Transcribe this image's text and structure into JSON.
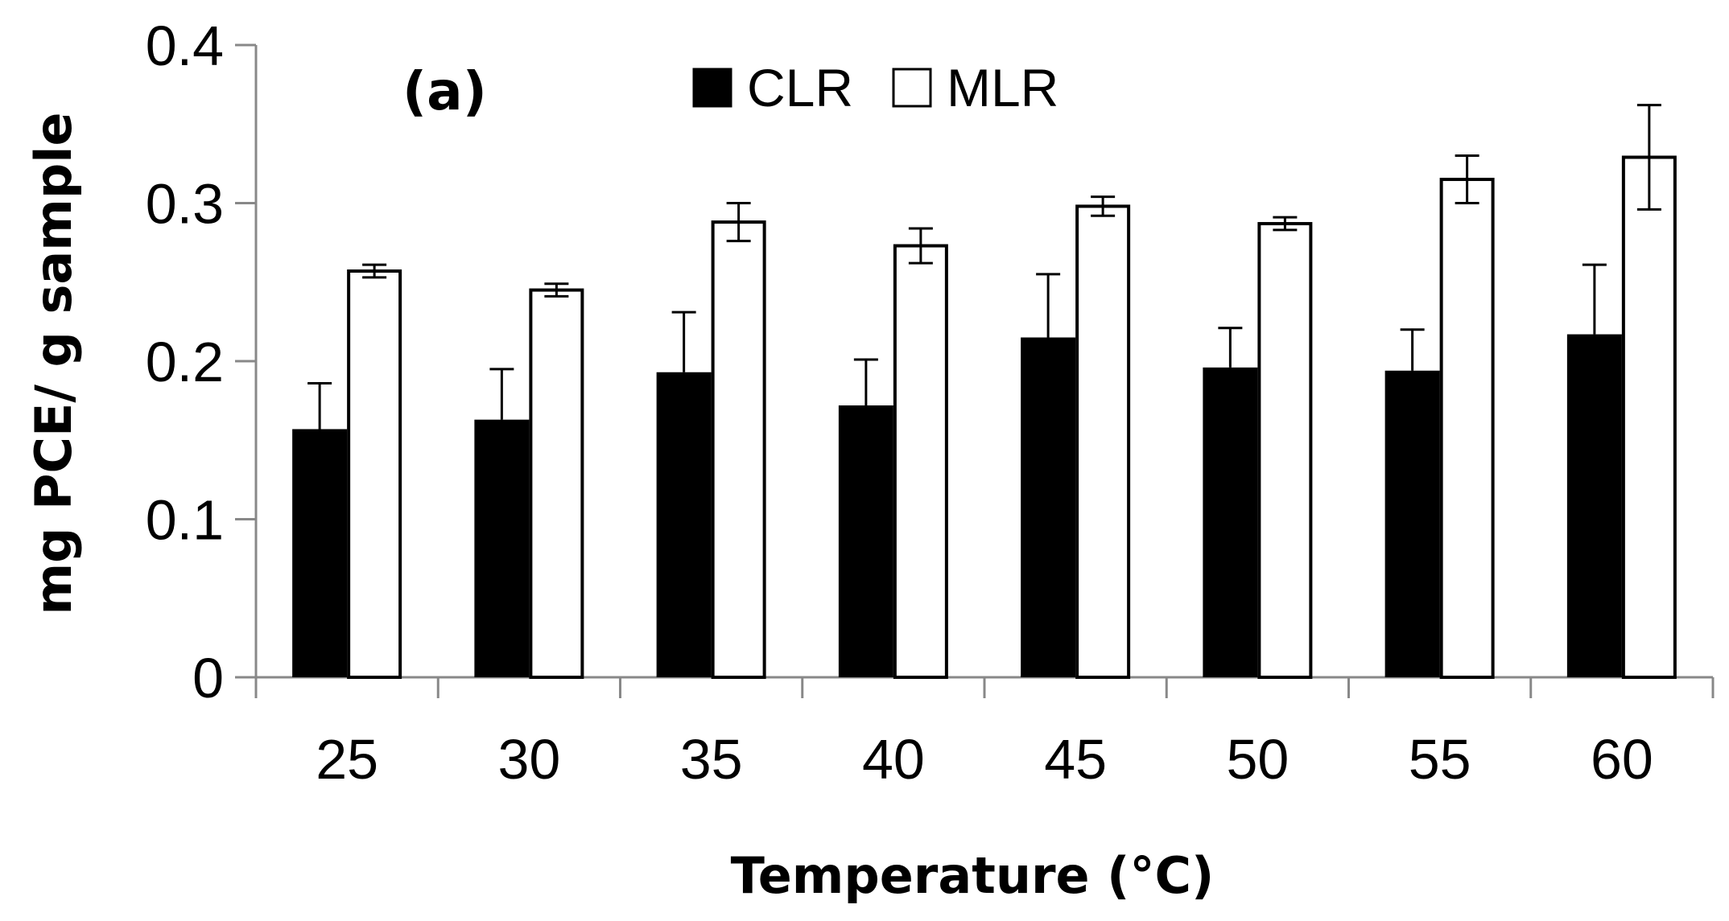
{
  "chart_data": {
    "type": "bar",
    "panel_label": "(a)",
    "xlabel": "Temperature (°C)",
    "ylabel": "mg PCE/ g sample",
    "ylim": [
      0,
      0.4
    ],
    "yticks": [
      0,
      0.1,
      0.2,
      0.3,
      0.4
    ],
    "ytick_labels": [
      "0",
      "0.1",
      "0.2",
      "0.3",
      "0.4"
    ],
    "categories": [
      "25",
      "30",
      "35",
      "40",
      "45",
      "50",
      "55",
      "60"
    ],
    "legend_position": "top-center",
    "series": [
      {
        "name": "CLR",
        "fill": "#000000",
        "values": [
          0.157,
          0.163,
          0.193,
          0.172,
          0.215,
          0.196,
          0.194,
          0.217
        ],
        "errors": [
          0.029,
          0.032,
          0.038,
          0.029,
          0.04,
          0.025,
          0.026,
          0.044
        ]
      },
      {
        "name": "MLR",
        "fill": "#ffffff",
        "values": [
          0.257,
          0.245,
          0.288,
          0.273,
          0.298,
          0.287,
          0.315,
          0.329
        ],
        "errors": [
          0.004,
          0.004,
          0.012,
          0.011,
          0.006,
          0.004,
          0.015,
          0.033
        ]
      }
    ]
  }
}
